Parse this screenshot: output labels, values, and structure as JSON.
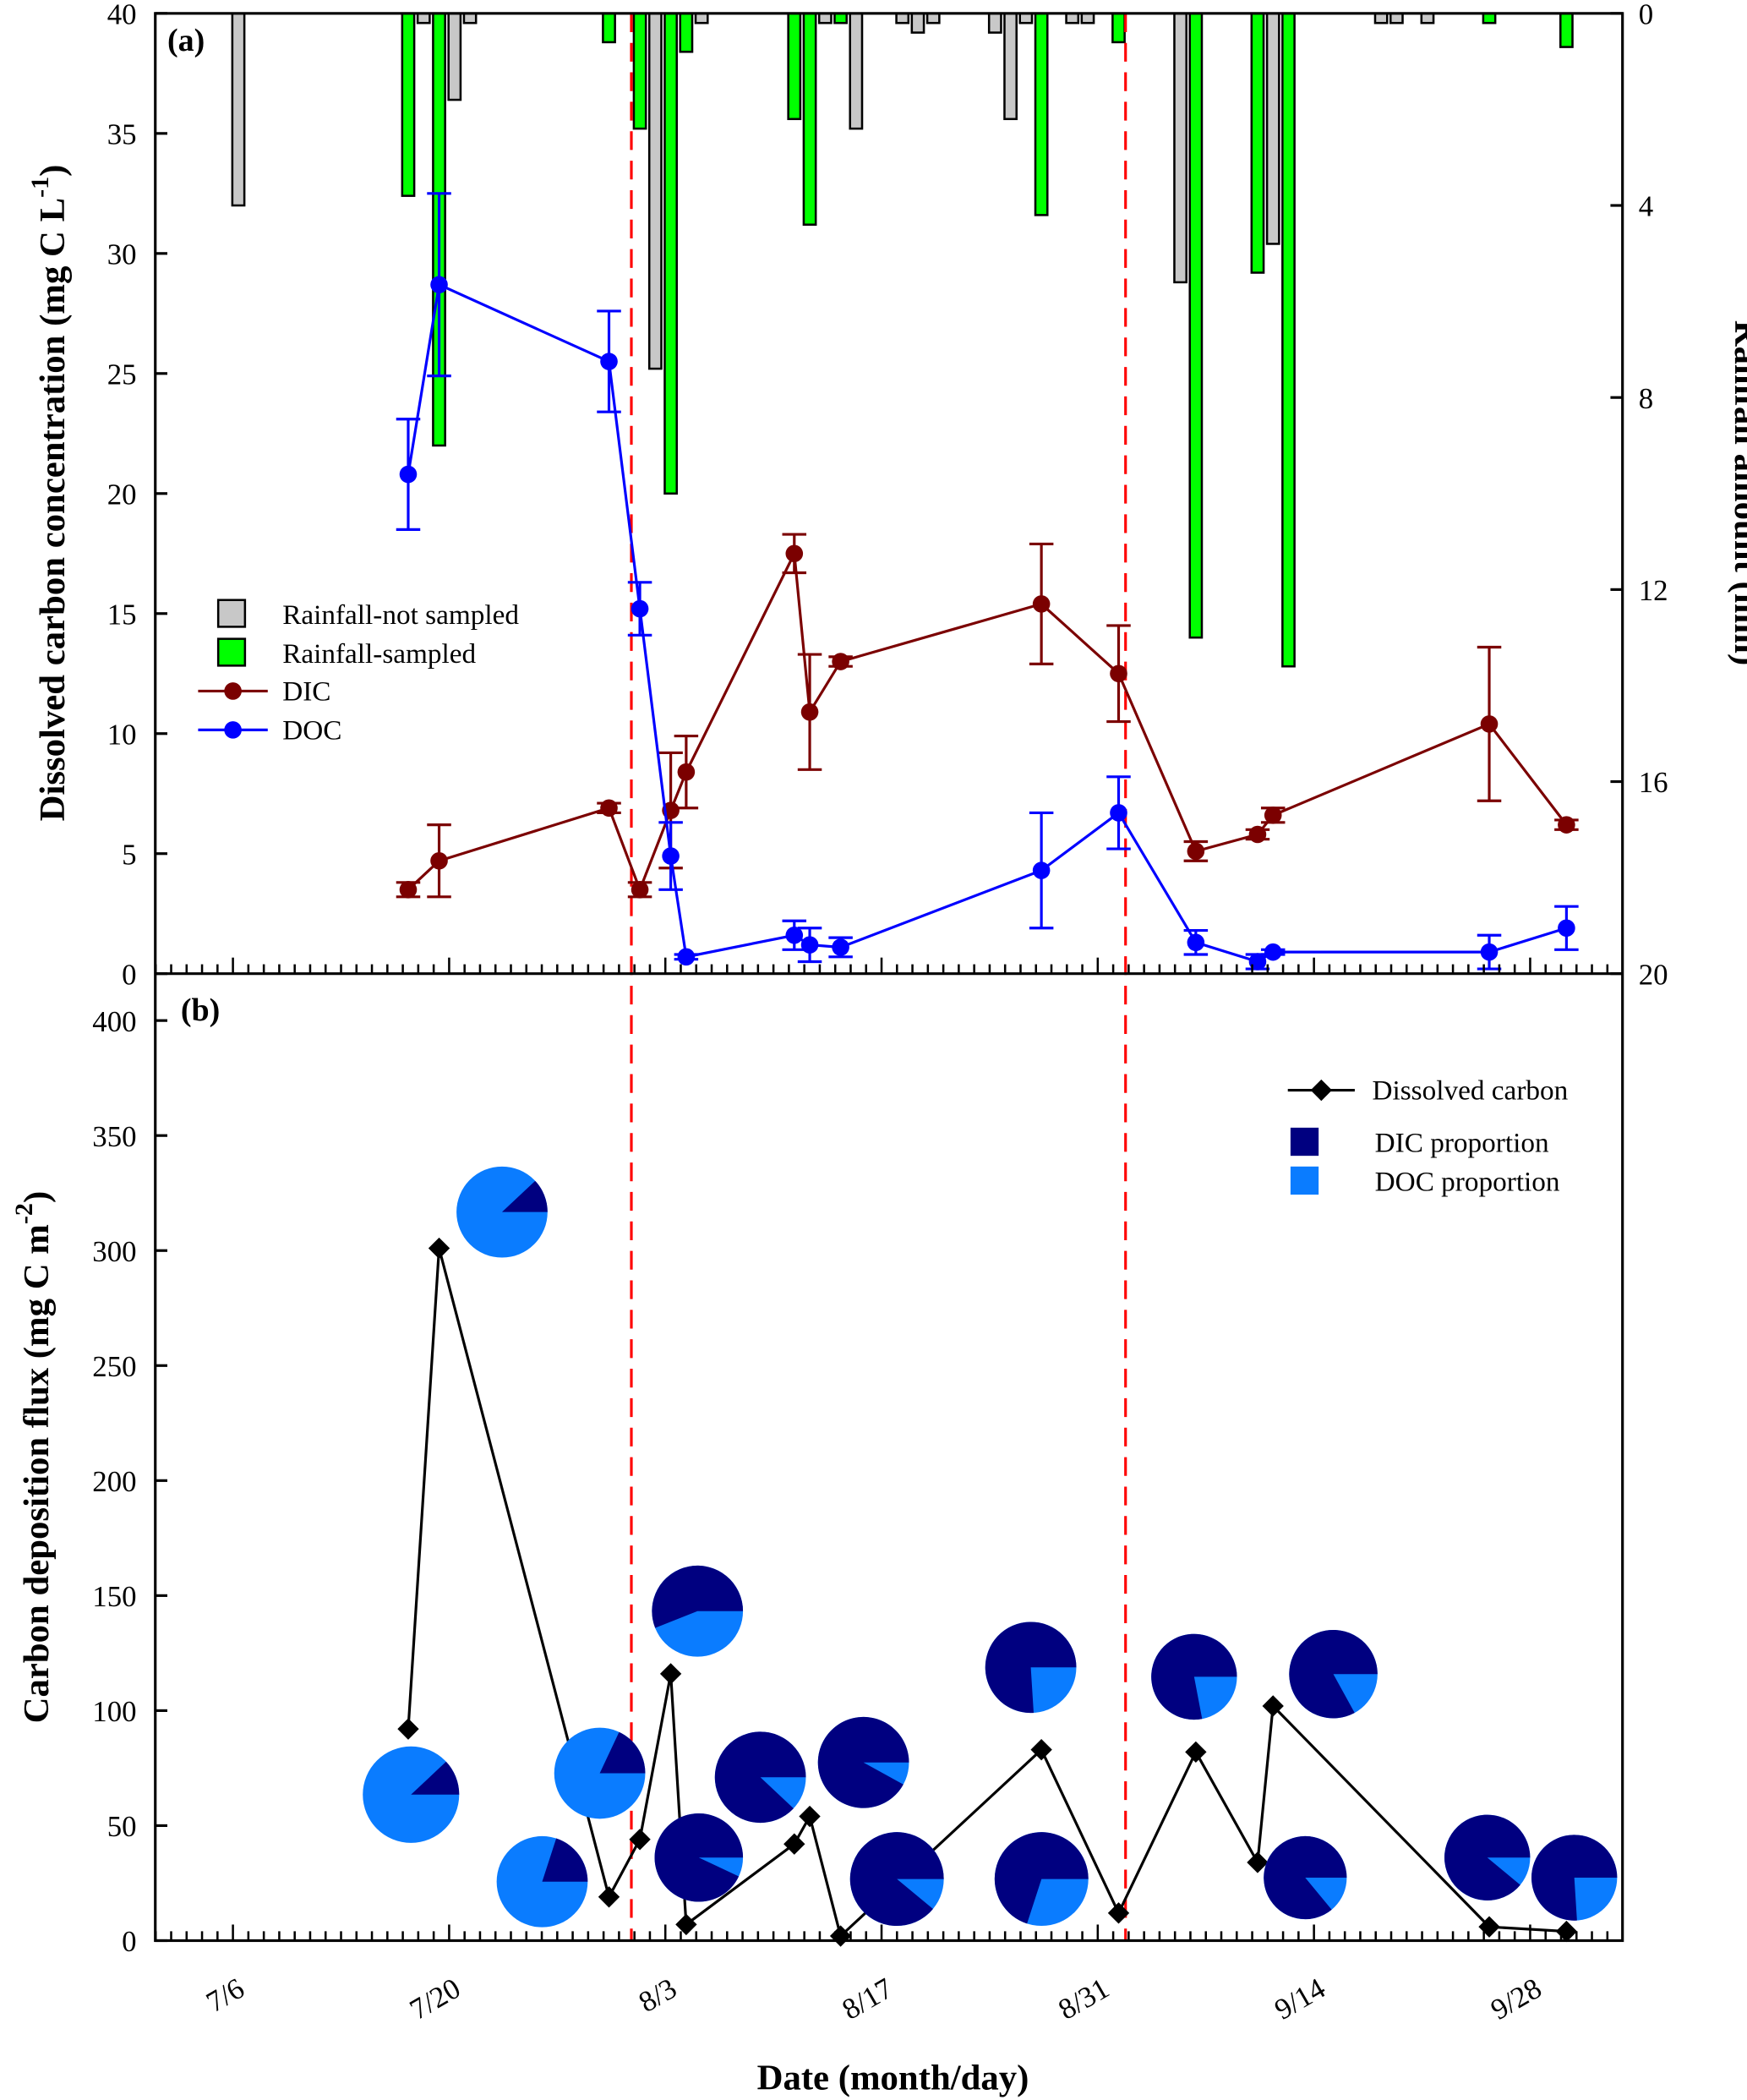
{
  "chart_data": {
    "type": "bar+line+pie",
    "xaxis": {
      "label": "Date (month/day)",
      "ticks": [
        "7/6",
        "7/20",
        "8/3",
        "8/17",
        "8/31",
        "9/14",
        "9/28"
      ]
    },
    "reference_lines": {
      "style": "red dashed vertical",
      "dates": [
        "8/1",
        "9/2"
      ],
      "color": "#FF0000"
    },
    "panel_a": {
      "label": "(a)",
      "ylabel_main": "Dissolved carbon concentration (mg C L",
      "ylabel_sup": "-1",
      "ylabel_end": ")",
      "y2label": "Rainfall amount (mm)",
      "ylim": [
        0,
        40
      ],
      "y2lim": [
        0,
        20
      ],
      "y2_reversed": true,
      "yticks": [
        0,
        5,
        10,
        15,
        20,
        25,
        30,
        35,
        40
      ],
      "y2ticks": [
        0,
        4,
        8,
        12,
        16,
        20
      ],
      "legend": {
        "not_sampled": "Rainfall-not sampled",
        "sampled": "Rainfall-sampled",
        "dic": "DIC",
        "doc": "DOC"
      },
      "colors": {
        "not_sampled": "#C8C8C8",
        "sampled": "#00FF00",
        "dic": "#7B0000",
        "doc": "#0000FF"
      },
      "rainfall": [
        {
          "date": "7/6",
          "mm": 4.0,
          "sampled": false
        },
        {
          "date": "7/17",
          "mm": 3.8,
          "sampled": true
        },
        {
          "date": "7/18",
          "mm": 0.2,
          "sampled": false
        },
        {
          "date": "7/19",
          "mm": 9.0,
          "sampled": true
        },
        {
          "date": "7/20",
          "mm": 1.8,
          "sampled": false
        },
        {
          "date": "7/21",
          "mm": 0.2,
          "sampled": false
        },
        {
          "date": "7/30",
          "mm": 0.6,
          "sampled": true
        },
        {
          "date": "8/1",
          "mm": 2.4,
          "sampled": true
        },
        {
          "date": "8/2",
          "mm": 7.4,
          "sampled": false
        },
        {
          "date": "8/3",
          "mm": 10.0,
          "sampled": true
        },
        {
          "date": "8/4",
          "mm": 0.8,
          "sampled": true
        },
        {
          "date": "8/5",
          "mm": 0.2,
          "sampled": false
        },
        {
          "date": "8/11",
          "mm": 2.2,
          "sampled": true
        },
        {
          "date": "8/12",
          "mm": 4.4,
          "sampled": true
        },
        {
          "date": "8/13",
          "mm": 0.2,
          "sampled": false
        },
        {
          "date": "8/14",
          "mm": 0.2,
          "sampled": true
        },
        {
          "date": "8/15",
          "mm": 2.4,
          "sampled": false
        },
        {
          "date": "8/18",
          "mm": 0.2,
          "sampled": false
        },
        {
          "date": "8/19",
          "mm": 0.4,
          "sampled": false
        },
        {
          "date": "8/20",
          "mm": 0.2,
          "sampled": false
        },
        {
          "date": "8/24",
          "mm": 0.4,
          "sampled": false
        },
        {
          "date": "8/25",
          "mm": 2.2,
          "sampled": false
        },
        {
          "date": "8/26",
          "mm": 0.2,
          "sampled": false
        },
        {
          "date": "8/27",
          "mm": 4.2,
          "sampled": true
        },
        {
          "date": "8/29",
          "mm": 0.2,
          "sampled": false
        },
        {
          "date": "8/30",
          "mm": 0.2,
          "sampled": false
        },
        {
          "date": "9/1",
          "mm": 0.6,
          "sampled": true
        },
        {
          "date": "9/5",
          "mm": 5.6,
          "sampled": false
        },
        {
          "date": "9/6",
          "mm": 13.0,
          "sampled": true
        },
        {
          "date": "9/10",
          "mm": 5.4,
          "sampled": true
        },
        {
          "date": "9/11",
          "mm": 4.8,
          "sampled": false
        },
        {
          "date": "9/12",
          "mm": 13.6,
          "sampled": true
        },
        {
          "date": "9/18",
          "mm": 0.2,
          "sampled": false
        },
        {
          "date": "9/19",
          "mm": 0.2,
          "sampled": false
        },
        {
          "date": "9/21",
          "mm": 0.2,
          "sampled": false
        },
        {
          "date": "9/25",
          "mm": 0.2,
          "sampled": true
        },
        {
          "date": "9/30",
          "mm": 0.7,
          "sampled": true
        }
      ],
      "series": [
        {
          "name": "DIC",
          "points": [
            {
              "date": "7/17",
              "value": 3.5,
              "error": 0.3
            },
            {
              "date": "7/19",
              "value": 4.7,
              "error": 1.5
            },
            {
              "date": "7/30",
              "value": 6.9,
              "error": 0.2
            },
            {
              "date": "8/1",
              "value": 3.5,
              "error": 0.3
            },
            {
              "date": "8/3",
              "value": 6.8,
              "error": 2.4
            },
            {
              "date": "8/4",
              "value": 8.4,
              "error": 1.5
            },
            {
              "date": "8/11",
              "value": 17.5,
              "error": 0.8
            },
            {
              "date": "8/12",
              "value": 10.9,
              "error": 2.4
            },
            {
              "date": "8/14",
              "value": 13.0,
              "error": 0.2
            },
            {
              "date": "8/27",
              "value": 15.4,
              "error": 2.5
            },
            {
              "date": "9/1",
              "value": 12.5,
              "error": 2.0
            },
            {
              "date": "9/6",
              "value": 5.1,
              "error": 0.4
            },
            {
              "date": "9/10",
              "value": 5.8,
              "error": 0.2
            },
            {
              "date": "9/11",
              "value": 6.6,
              "error": 0.3
            },
            {
              "date": "9/25",
              "value": 10.4,
              "error": 3.2
            },
            {
              "date": "9/30",
              "value": 6.2,
              "error": 0.2
            }
          ]
        },
        {
          "name": "DOC",
          "points": [
            {
              "date": "7/17",
              "value": 20.8,
              "error": 2.3
            },
            {
              "date": "7/19",
              "value": 28.7,
              "error": 3.8
            },
            {
              "date": "7/30",
              "value": 25.5,
              "error": 2.1
            },
            {
              "date": "8/1",
              "value": 15.2,
              "error": 1.1
            },
            {
              "date": "8/3",
              "value": 4.9,
              "error": 1.4
            },
            {
              "date": "8/4",
              "value": 0.7,
              "error": 0.1
            },
            {
              "date": "8/11",
              "value": 1.6,
              "error": 0.6
            },
            {
              "date": "8/12",
              "value": 1.2,
              "error": 0.7
            },
            {
              "date": "8/14",
              "value": 1.1,
              "error": 0.4
            },
            {
              "date": "8/27",
              "value": 4.3,
              "error": 2.4
            },
            {
              "date": "9/1",
              "value": 6.7,
              "error": 1.5
            },
            {
              "date": "9/6",
              "value": 1.3,
              "error": 0.5
            },
            {
              "date": "9/10",
              "value": 0.5,
              "error": 0.3
            },
            {
              "date": "9/11",
              "value": 0.9,
              "error": 0.1
            },
            {
              "date": "9/25",
              "value": 0.9,
              "error": 0.7
            },
            {
              "date": "9/30",
              "value": 1.9,
              "error": 0.9
            }
          ]
        }
      ]
    },
    "panel_b": {
      "label": "(b)",
      "ylabel_main": "Carbon deposition flux  (mg C m",
      "ylabel_sup": "-2",
      "ylabel_end": ")",
      "ylim": [
        0,
        420
      ],
      "yticks": [
        0,
        50,
        100,
        150,
        200,
        250,
        300,
        350,
        400
      ],
      "legend": {
        "flux": "Dissolved carbon",
        "dic": "DIC proportion",
        "doc": "DOC proportion"
      },
      "colors": {
        "line": "#000000",
        "dic": "#000080",
        "doc": "#0A7CFF"
      },
      "series": [
        {
          "name": "Dissolved carbon",
          "points": [
            {
              "date": "7/17",
              "value": 92,
              "dic_fraction": 0.12
            },
            {
              "date": "7/19",
              "value": 301,
              "dic_fraction": 0.12
            },
            {
              "date": "7/30",
              "value": 19,
              "dic_fraction": 0.18
            },
            {
              "date": "8/1",
              "value": 44,
              "dic_fraction": 0.2
            },
            {
              "date": "8/3",
              "value": 116,
              "dic_fraction": 0.56
            },
            {
              "date": "8/4",
              "value": 7,
              "dic_fraction": 0.93
            },
            {
              "date": "8/11",
              "value": 42,
              "dic_fraction": 0.88
            },
            {
              "date": "8/12",
              "value": 54,
              "dic_fraction": 0.92
            },
            {
              "date": "8/14",
              "value": 2,
              "dic_fraction": 0.89
            },
            {
              "date": "8/27",
              "value": 83,
              "dic_fraction": 0.76
            },
            {
              "date": "9/1",
              "value": 12,
              "dic_fraction": 0.7
            },
            {
              "date": "9/6",
              "value": 82,
              "dic_fraction": 0.78
            },
            {
              "date": "9/10",
              "value": 34,
              "dic_fraction": 0.86
            },
            {
              "date": "9/11",
              "value": 102,
              "dic_fraction": 0.83
            },
            {
              "date": "9/25",
              "value": 6,
              "dic_fraction": 0.89
            },
            {
              "date": "9/30",
              "value": 4,
              "dic_fraction": 0.76
            }
          ]
        }
      ]
    }
  }
}
